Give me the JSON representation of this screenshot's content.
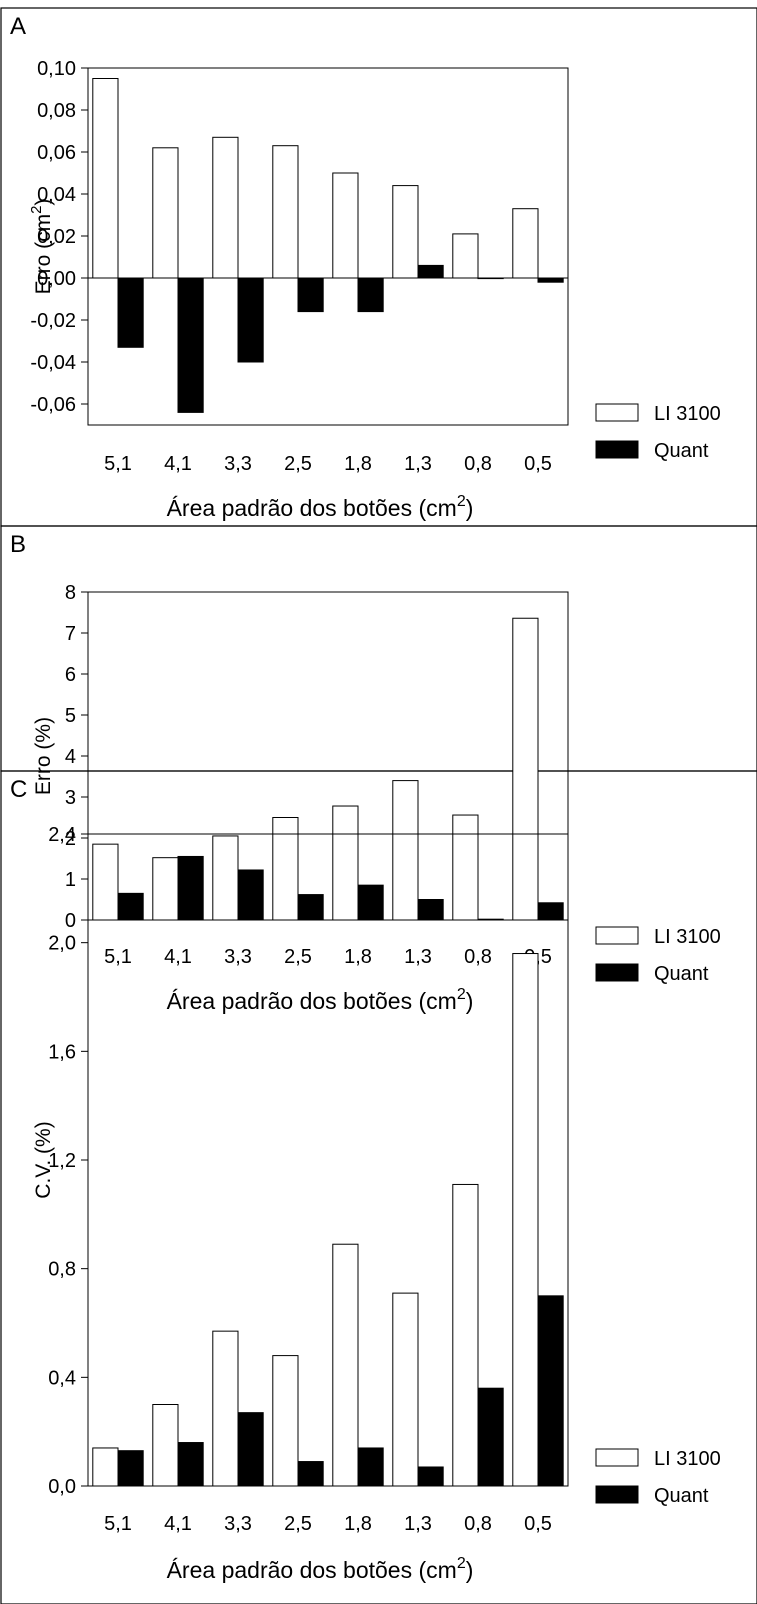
{
  "legend": {
    "series_a": "LI 3100",
    "series_b": "Quant"
  },
  "xlabel": {
    "main": "Área padrão dos botões (cm",
    "sup": "2",
    "close": ")"
  },
  "chart_data": [
    {
      "panel": "A",
      "type": "bar",
      "ylabel": {
        "main": "Erro (cm",
        "sup": "2",
        "close": ")"
      },
      "categories": [
        "5,1",
        "4,1",
        "3,3",
        "2,5",
        "1,8",
        "1,3",
        "0,8",
        "0,5"
      ],
      "series": [
        {
          "name": "LI 3100",
          "values": [
            0.095,
            0.062,
            0.067,
            0.063,
            0.05,
            0.044,
            0.021,
            0.033
          ]
        },
        {
          "name": "Quant",
          "values": [
            -0.033,
            -0.064,
            -0.04,
            -0.016,
            -0.016,
            0.006,
            0.0,
            -0.002
          ]
        }
      ],
      "ylim": [
        -0.07,
        0.1
      ],
      "yticks": [
        -0.06,
        -0.04,
        -0.02,
        0.0,
        0.02,
        0.04,
        0.06,
        0.08,
        0.1
      ],
      "ytick_labels": [
        "-0,06",
        "-0,04",
        "-0,02",
        "0,00",
        "0,02",
        "0,04",
        "0,06",
        "0,08",
        "0,10"
      ],
      "zero_line": true,
      "legend_position": "bottom-right"
    },
    {
      "panel": "B",
      "type": "bar",
      "ylabel": {
        "main": "Erro (%)",
        "sup": "",
        "close": ""
      },
      "categories": [
        "5,1",
        "4,1",
        "3,3",
        "2,5",
        "1,8",
        "1,3",
        "0,8",
        "0,5"
      ],
      "series": [
        {
          "name": "LI 3100",
          "values": [
            1.85,
            1.52,
            2.05,
            2.5,
            2.78,
            3.4,
            2.56,
            7.36
          ]
        },
        {
          "name": "Quant",
          "values": [
            0.65,
            1.55,
            1.22,
            0.62,
            0.85,
            0.5,
            0.02,
            0.42
          ]
        }
      ],
      "ylim": [
        0,
        8
      ],
      "yticks": [
        0,
        1,
        2,
        3,
        4,
        5,
        6,
        7,
        8
      ],
      "ytick_labels": [
        "0",
        "1",
        "2",
        "3",
        "4",
        "5",
        "6",
        "7",
        "8"
      ],
      "zero_line": false,
      "legend_position": "bottom-right"
    },
    {
      "panel": "C",
      "type": "bar",
      "ylabel": {
        "main": "C.V. (%)",
        "sup": "",
        "close": ""
      },
      "categories": [
        "5,1",
        "4,1",
        "3,3",
        "2,5",
        "1,8",
        "1,3",
        "0,8",
        "0,5"
      ],
      "series": [
        {
          "name": "LI 3100",
          "values": [
            0.14,
            0.3,
            0.57,
            0.48,
            0.89,
            0.71,
            1.11,
            1.96
          ]
        },
        {
          "name": "Quant",
          "values": [
            0.13,
            0.16,
            0.27,
            0.09,
            0.14,
            0.07,
            0.36,
            0.7
          ]
        }
      ],
      "ylim": [
        0,
        2.4
      ],
      "yticks": [
        0,
        0.4,
        0.8,
        1.2,
        1.6,
        2.0,
        2.4
      ],
      "ytick_labels": [
        "0,0",
        "0,4",
        "0,8",
        "1,2",
        "1,6",
        "2,0",
        "2,4"
      ],
      "zero_line": false,
      "legend_position": "bottom-right"
    }
  ]
}
